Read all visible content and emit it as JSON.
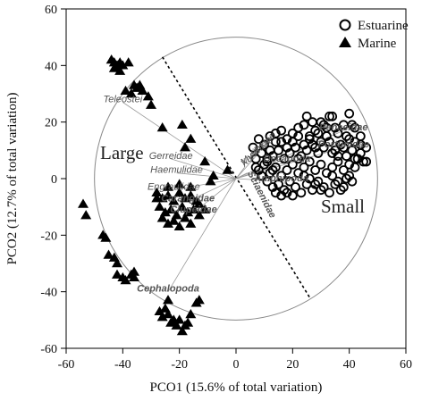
{
  "chart_data": {
    "type": "scatter",
    "xlabel": "PCO1 (15.6% of total variation)",
    "ylabel": "PCO2 (12.7% of total variation)",
    "xlim": [
      -60,
      60
    ],
    "ylim": [
      -60,
      60
    ],
    "xticks": [
      "-60",
      "-40",
      "-20",
      "0",
      "20",
      "40",
      "60"
    ],
    "yticks": [
      "-60",
      "-40",
      "-20",
      "0",
      "20",
      "40",
      "60"
    ],
    "legend": {
      "placement": "top-right",
      "entries": [
        {
          "label": "Estuarine",
          "marker": "open-circle"
        },
        {
          "label": "Marine",
          "marker": "filled-triangle"
        }
      ]
    },
    "circle": {
      "cx": 0,
      "cy": 0,
      "r": 50
    },
    "separator": {
      "from": [
        -26,
        43
      ],
      "to": [
        26,
        -42
      ]
    },
    "group_labels": [
      {
        "text": "Large",
        "x": -48,
        "y": 7
      },
      {
        "text": "Small",
        "x": 30,
        "y": -12
      }
    ],
    "vectors": [
      {
        "label": "Teleostei",
        "x": -40,
        "y": 27,
        "bold": false
      },
      {
        "label": "Gerreidae",
        "x": -23,
        "y": 7,
        "bold": false
      },
      {
        "label": "Haemulidae",
        "x": -21,
        "y": 2,
        "bold": false
      },
      {
        "label": "Engraulidae",
        "x": -22,
        "y": -4,
        "bold": false
      },
      {
        "label": "Carangidae",
        "x": -17,
        "y": -8,
        "bold": true
      },
      {
        "label": "Clupeidae",
        "x": -15,
        "y": -12,
        "bold": true
      },
      {
        "label": "Cephalopoda",
        "x": -24,
        "y": -40,
        "bold": true
      },
      {
        "label": "Sciaenidae",
        "x": 4,
        "y": 2,
        "bold": true
      },
      {
        "label": "Xanthidae",
        "x": 3,
        "y": 4,
        "bold": false
      },
      {
        "label": "Mytilidae",
        "x": 8,
        "y": 9,
        "bold": false
      },
      {
        "label": "Penaeidae",
        "x": 38,
        "y": 17,
        "bold": true
      },
      {
        "label": "Portunidae",
        "x": 38,
        "y": 11,
        "bold": true
      },
      {
        "label": "Decapoda",
        "x": 18,
        "y": 6,
        "bold": true
      },
      {
        "label": "Amphipoda",
        "x": 16,
        "y": -1,
        "bold": true
      }
    ],
    "series": [
      {
        "name": "Estuarine",
        "marker": "open-circle",
        "points": [
          [
            6,
            11
          ],
          [
            8,
            14
          ],
          [
            10,
            12
          ],
          [
            12,
            15
          ],
          [
            14,
            13
          ],
          [
            16,
            17
          ],
          [
            18,
            14
          ],
          [
            20,
            16
          ],
          [
            22,
            18
          ],
          [
            24,
            19
          ],
          [
            26,
            15
          ],
          [
            28,
            17
          ],
          [
            30,
            20
          ],
          [
            32,
            18
          ],
          [
            34,
            22
          ],
          [
            36,
            16
          ],
          [
            38,
            19
          ],
          [
            40,
            23
          ],
          [
            42,
            18
          ],
          [
            44,
            12
          ],
          [
            7,
            7
          ],
          [
            9,
            9
          ],
          [
            11,
            6
          ],
          [
            13,
            8
          ],
          [
            15,
            10
          ],
          [
            17,
            7
          ],
          [
            19,
            9
          ],
          [
            21,
            11
          ],
          [
            23,
            8
          ],
          [
            25,
            10
          ],
          [
            27,
            12
          ],
          [
            29,
            9
          ],
          [
            31,
            11
          ],
          [
            33,
            13
          ],
          [
            35,
            10
          ],
          [
            37,
            12
          ],
          [
            39,
            8
          ],
          [
            41,
            10
          ],
          [
            43,
            7
          ],
          [
            45,
            6
          ],
          [
            8,
            3
          ],
          [
            10,
            5
          ],
          [
            12,
            2
          ],
          [
            14,
            4
          ],
          [
            16,
            1
          ],
          [
            18,
            3
          ],
          [
            20,
            5
          ],
          [
            22,
            2
          ],
          [
            24,
            4
          ],
          [
            26,
            6
          ],
          [
            28,
            3
          ],
          [
            30,
            5
          ],
          [
            32,
            2
          ],
          [
            34,
            4
          ],
          [
            36,
            6
          ],
          [
            38,
            3
          ],
          [
            40,
            1
          ],
          [
            42,
            4
          ],
          [
            44,
            9
          ],
          [
            46,
            6
          ],
          [
            11,
            -1
          ],
          [
            13,
            -3
          ],
          [
            15,
            -2
          ],
          [
            17,
            -4
          ],
          [
            19,
            -1
          ],
          [
            21,
            -3
          ],
          [
            23,
            -5
          ],
          [
            25,
            -2
          ],
          [
            27,
            -4
          ],
          [
            29,
            -1
          ],
          [
            31,
            -3
          ],
          [
            33,
            -5
          ],
          [
            35,
            -2
          ],
          [
            37,
            -4
          ],
          [
            39,
            0
          ],
          [
            41,
            -1
          ],
          [
            9,
            1
          ],
          [
            7,
            4
          ],
          [
            12,
            10
          ],
          [
            14,
            16
          ],
          [
            16,
            13
          ],
          [
            18,
            11
          ],
          [
            20,
            13
          ],
          [
            22,
            15
          ],
          [
            24,
            12
          ],
          [
            26,
            14
          ],
          [
            28,
            11
          ],
          [
            30,
            13
          ],
          [
            32,
            15
          ],
          [
            34,
            9
          ],
          [
            36,
            8
          ],
          [
            38,
            11
          ],
          [
            40,
            14
          ],
          [
            42,
            13
          ],
          [
            44,
            15
          ],
          [
            46,
            11
          ],
          [
            41,
            19
          ],
          [
            39,
            15
          ],
          [
            33,
            22
          ],
          [
            35,
            18
          ],
          [
            29,
            16
          ],
          [
            31,
            19
          ],
          [
            27,
            20
          ],
          [
            25,
            22
          ],
          [
            22,
            7
          ],
          [
            24,
            1
          ],
          [
            26,
            0
          ],
          [
            28,
            -2
          ],
          [
            30,
            -4
          ],
          [
            34,
            1
          ],
          [
            36,
            -1
          ],
          [
            38,
            -3
          ],
          [
            40,
            5
          ],
          [
            42,
            7
          ],
          [
            20,
            -6
          ],
          [
            18,
            -5
          ],
          [
            16,
            -6
          ],
          [
            14,
            -5
          ],
          [
            13,
            3
          ],
          [
            11,
            7
          ]
        ]
      },
      {
        "name": "Marine",
        "marker": "filled-triangle",
        "points": [
          [
            -44,
            42
          ],
          [
            -43,
            41
          ],
          [
            -42,
            40
          ],
          [
            -41,
            41
          ],
          [
            -40,
            40
          ],
          [
            -43,
            39
          ],
          [
            -38,
            41
          ],
          [
            -41,
            38
          ],
          [
            -36,
            33
          ],
          [
            -35,
            32
          ],
          [
            -34,
            33
          ],
          [
            -33,
            31
          ],
          [
            -39,
            31
          ],
          [
            -31,
            29
          ],
          [
            -30,
            26
          ],
          [
            -37,
            30
          ],
          [
            -26,
            18
          ],
          [
            -19,
            19
          ],
          [
            -18,
            11
          ],
          [
            -16,
            14
          ],
          [
            -11,
            6
          ],
          [
            -8,
            1
          ],
          [
            -3,
            3
          ],
          [
            -9,
            -1
          ],
          [
            -28,
            -5
          ],
          [
            -26,
            -7
          ],
          [
            -24,
            -6
          ],
          [
            -22,
            -8
          ],
          [
            -20,
            -5
          ],
          [
            -18,
            -7
          ],
          [
            -16,
            -6
          ],
          [
            -14,
            -8
          ],
          [
            -27,
            -10
          ],
          [
            -25,
            -12
          ],
          [
            -23,
            -11
          ],
          [
            -21,
            -13
          ],
          [
            -19,
            -10
          ],
          [
            -17,
            -12
          ],
          [
            -15,
            -11
          ],
          [
            -13,
            -13
          ],
          [
            -26,
            -14
          ],
          [
            -24,
            -16
          ],
          [
            -22,
            -15
          ],
          [
            -20,
            -17
          ],
          [
            -18,
            -14
          ],
          [
            -16,
            -16
          ],
          [
            -13,
            -9
          ],
          [
            -11,
            -11
          ],
          [
            -24,
            -3
          ],
          [
            -20,
            -2
          ],
          [
            -16,
            -3
          ],
          [
            -28,
            -7
          ],
          [
            -53,
            -13
          ],
          [
            -54,
            -9
          ],
          [
            -47,
            -20
          ],
          [
            -46,
            -21
          ],
          [
            -45,
            -27
          ],
          [
            -43,
            -28
          ],
          [
            -42,
            -30
          ],
          [
            -40,
            -35
          ],
          [
            -42,
            -34
          ],
          [
            -39,
            -36
          ],
          [
            -37,
            -34
          ],
          [
            -36,
            -35
          ],
          [
            -36,
            -33
          ],
          [
            -25,
            -46
          ],
          [
            -24,
            -48
          ],
          [
            -23,
            -51
          ],
          [
            -22,
            -50
          ],
          [
            -21,
            -52
          ],
          [
            -20,
            -50
          ],
          [
            -19,
            -54
          ],
          [
            -18,
            -52
          ],
          [
            -17,
            -51
          ],
          [
            -16,
            -48
          ],
          [
            -14,
            -44
          ],
          [
            -13,
            -43
          ],
          [
            -24,
            -43
          ],
          [
            -27,
            -47
          ],
          [
            -26,
            -49
          ]
        ]
      }
    ]
  }
}
